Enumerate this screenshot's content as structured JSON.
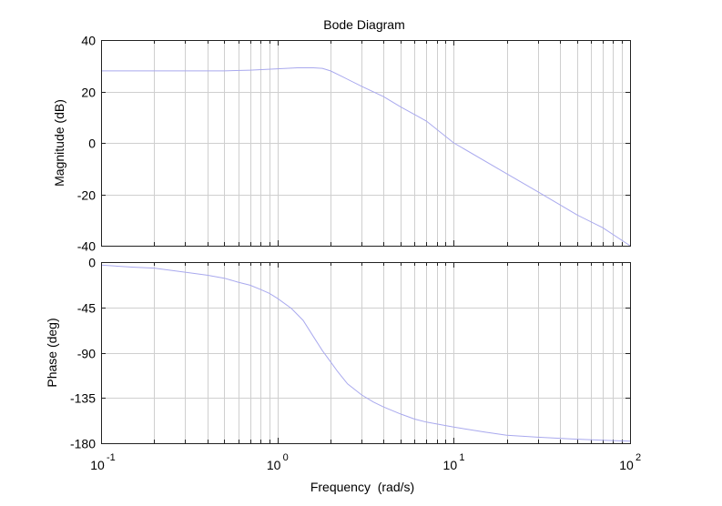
{
  "chart_data": [
    {
      "type": "line",
      "title": "Bode Diagram",
      "xlabel": "",
      "ylabel": "Magnitude (dB)",
      "xscale": "log",
      "xlim": [
        0.1,
        100
      ],
      "ylim": [
        -40,
        40
      ],
      "yticks": [
        40,
        20,
        0,
        -20,
        -40
      ],
      "grid": true,
      "series": [
        {
          "color": "#a9a9ee",
          "x": [
            0.1,
            0.2,
            0.3,
            0.5,
            0.7,
            1.0,
            1.3,
            1.6,
            1.8,
            2.0,
            2.3,
            3.0,
            4.0,
            5.0,
            7.0,
            10.0,
            20.0,
            30.0,
            50.0,
            70.0,
            100.0
          ],
          "y": [
            28.0,
            28.0,
            28.0,
            28.0,
            28.3,
            28.8,
            29.2,
            29.2,
            29.0,
            28.0,
            26.0,
            22.0,
            18.0,
            14.0,
            8.5,
            0.0,
            -12.0,
            -19.0,
            -28.0,
            -33.0,
            -40.0
          ]
        }
      ]
    },
    {
      "type": "line",
      "title": "",
      "xlabel": "Frequency  (rad/s)",
      "ylabel": "Phase (deg)",
      "xscale": "log",
      "xlim": [
        0.1,
        100
      ],
      "ylim": [
        -180,
        0
      ],
      "yticks": [
        0,
        -45,
        -90,
        -135,
        -180
      ],
      "xticks": [
        {
          "base": "10",
          "exp": "-1"
        },
        {
          "base": "10",
          "exp": "0"
        },
        {
          "base": "10",
          "exp": "1"
        },
        {
          "base": "10",
          "exp": "2"
        }
      ],
      "grid": true,
      "series": [
        {
          "color": "#a9a9ee",
          "x": [
            0.1,
            0.15,
            0.2,
            0.3,
            0.4,
            0.5,
            0.6,
            0.7,
            0.8,
            0.9,
            1.0,
            1.2,
            1.4,
            1.6,
            1.8,
            2.0,
            2.2,
            2.5,
            3.0,
            3.5,
            4.0,
            5.0,
            6.0,
            7.0,
            10.0,
            15.0,
            20.0,
            30.0,
            50.0,
            70.0,
            100.0
          ],
          "y": [
            -3,
            -5,
            -6,
            -10,
            -13,
            -16,
            -20,
            -23,
            -27,
            -31,
            -36,
            -46,
            -58,
            -74,
            -88,
            -99,
            -109,
            -121,
            -132,
            -139,
            -144,
            -151,
            -156,
            -159,
            -164,
            -169,
            -172,
            -174,
            -176,
            -177,
            -178
          ]
        }
      ]
    }
  ]
}
